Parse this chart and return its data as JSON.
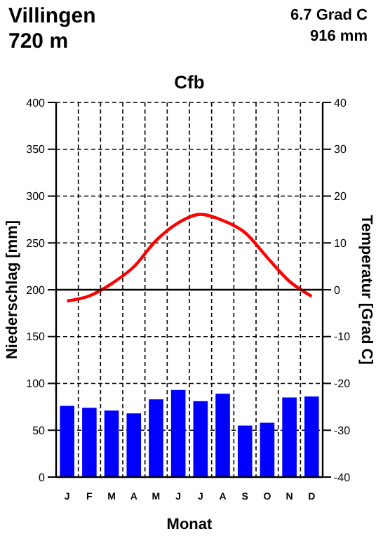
{
  "chart_data": {
    "type": "bar",
    "title": "Cfb",
    "xlabel": "Monat",
    "ylabel": "Niederschlag [mm]",
    "y2label": "Temperatur [Grad C]",
    "annotations": [
      "Villingen",
      "720 m",
      "6.7 Grad C",
      "916 mm"
    ],
    "categories": [
      "J",
      "F",
      "M",
      "A",
      "M",
      "J",
      "J",
      "A",
      "S",
      "O",
      "N",
      "D"
    ],
    "series": [
      {
        "color": "#0000ff",
        "values": [
          76,
          74,
          71,
          68,
          83,
          93,
          81,
          89,
          55,
          58,
          85,
          86
        ]
      },
      {
        "type": "line",
        "axis": "y2",
        "color": "#ff0000",
        "values": [
          -2.4,
          -1.3,
          1.3,
          4.9,
          10.5,
          14.3,
          16.1,
          14.8,
          12.2,
          6.9,
          1.8,
          -1.4
        ]
      }
    ],
    "ylim": [
      0,
      400
    ],
    "yticks": [
      0,
      50,
      100,
      150,
      200,
      250,
      300,
      350,
      400
    ],
    "y2lim": [
      -40,
      40
    ],
    "y2ticks": [
      -40,
      -30,
      -20,
      -10,
      0,
      10,
      20,
      30,
      40
    ],
    "ref_lines": [
      {
        "axis": "y2",
        "value": 0,
        "color": "#000000"
      }
    ],
    "grid": true,
    "line_style": "solid",
    "marker": "none"
  }
}
